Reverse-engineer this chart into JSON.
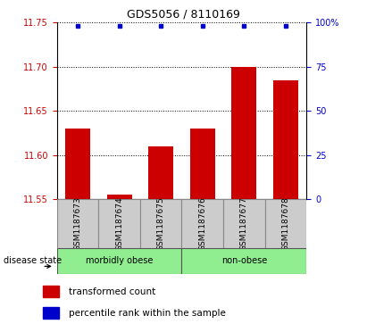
{
  "title": "GDS5056 / 8110169",
  "samples": [
    "GSM1187673",
    "GSM1187674",
    "GSM1187675",
    "GSM1187676",
    "GSM1187677",
    "GSM1187678"
  ],
  "bar_values": [
    11.63,
    11.555,
    11.61,
    11.63,
    11.7,
    11.685
  ],
  "percentile_values": [
    98,
    98,
    98,
    98,
    98,
    98
  ],
  "ylim_left": [
    11.55,
    11.75
  ],
  "ylim_right": [
    0,
    100
  ],
  "yticks_left": [
    11.55,
    11.6,
    11.65,
    11.7,
    11.75
  ],
  "yticks_right": [
    0,
    25,
    50,
    75,
    100
  ],
  "bar_color": "#cc0000",
  "dot_color": "#0000cc",
  "bar_width": 0.6,
  "groups": [
    {
      "label": "morbidly obese",
      "indices": [
        0,
        1,
        2
      ],
      "color": "#90ee90"
    },
    {
      "label": "non-obese",
      "indices": [
        3,
        4,
        5
      ],
      "color": "#90ee90"
    }
  ],
  "disease_state_label": "disease state",
  "legend_bar_label": "transformed count",
  "legend_dot_label": "percentile rank within the sample",
  "grid_color": "black",
  "tick_label_color_left": "#cc0000",
  "tick_label_color_right": "#0000cc",
  "sample_box_color": "#cccccc",
  "sample_box_edge": "#888888"
}
